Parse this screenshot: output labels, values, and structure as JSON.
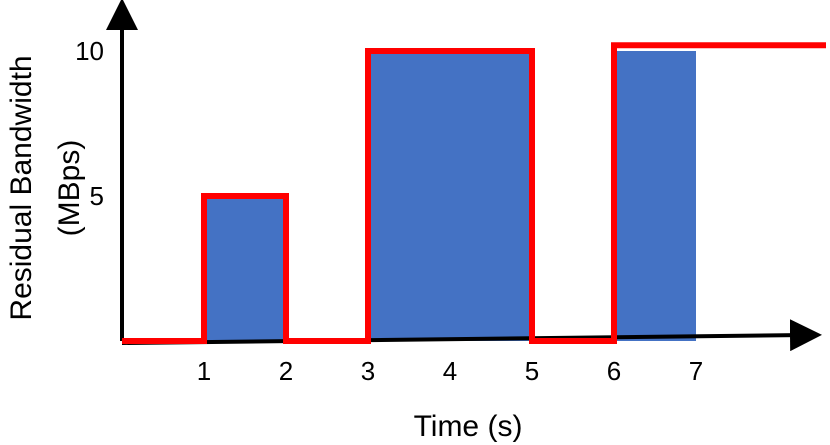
{
  "chart_data": {
    "type": "area",
    "title": "",
    "xlabel": "Time (s)",
    "ylabel_lines": [
      "Residual Bandwidth",
      "(MBps)"
    ],
    "x_ticks": [
      1,
      2,
      3,
      4,
      5,
      6,
      7
    ],
    "y_ticks": [
      5,
      10
    ],
    "xlim": [
      0,
      8.4
    ],
    "ylim": [
      0,
      10
    ],
    "grid": false,
    "series": [
      {
        "values": [
          {
            "x": 1,
            "y": 5
          },
          {
            "x": 2,
            "y": 5
          },
          {
            "x": 3,
            "y": 10
          },
          {
            "x": 5,
            "y": 10
          },
          {
            "x": 6,
            "y": 10
          },
          {
            "x": 7,
            "y": 10
          }
        ]
      }
    ],
    "blue_blocks": [
      {
        "x_start": 1,
        "x_end": 2,
        "value": 5
      },
      {
        "x_start": 3,
        "x_end": 5,
        "value": 10
      },
      {
        "x_start": 6,
        "x_end": 7,
        "value": 10
      }
    ],
    "red_outline": [
      {
        "x": 0,
        "y": 0
      },
      {
        "x": 1,
        "y": 0
      },
      {
        "x": 1,
        "y": 5
      },
      {
        "x": 2,
        "y": 5
      },
      {
        "x": 2,
        "y": 0
      },
      {
        "x": 3,
        "y": 0
      },
      {
        "x": 3,
        "y": 10
      },
      {
        "x": 5,
        "y": 10
      },
      {
        "x": 5,
        "y": 0
      },
      {
        "x": 6,
        "y": 0
      },
      {
        "x": 6,
        "y": 10.2
      },
      {
        "x": 8.4,
        "y": 10.2
      }
    ],
    "colors": {
      "fill": "#4472c4",
      "outline": "#ff0000",
      "axis": "#000000"
    }
  }
}
